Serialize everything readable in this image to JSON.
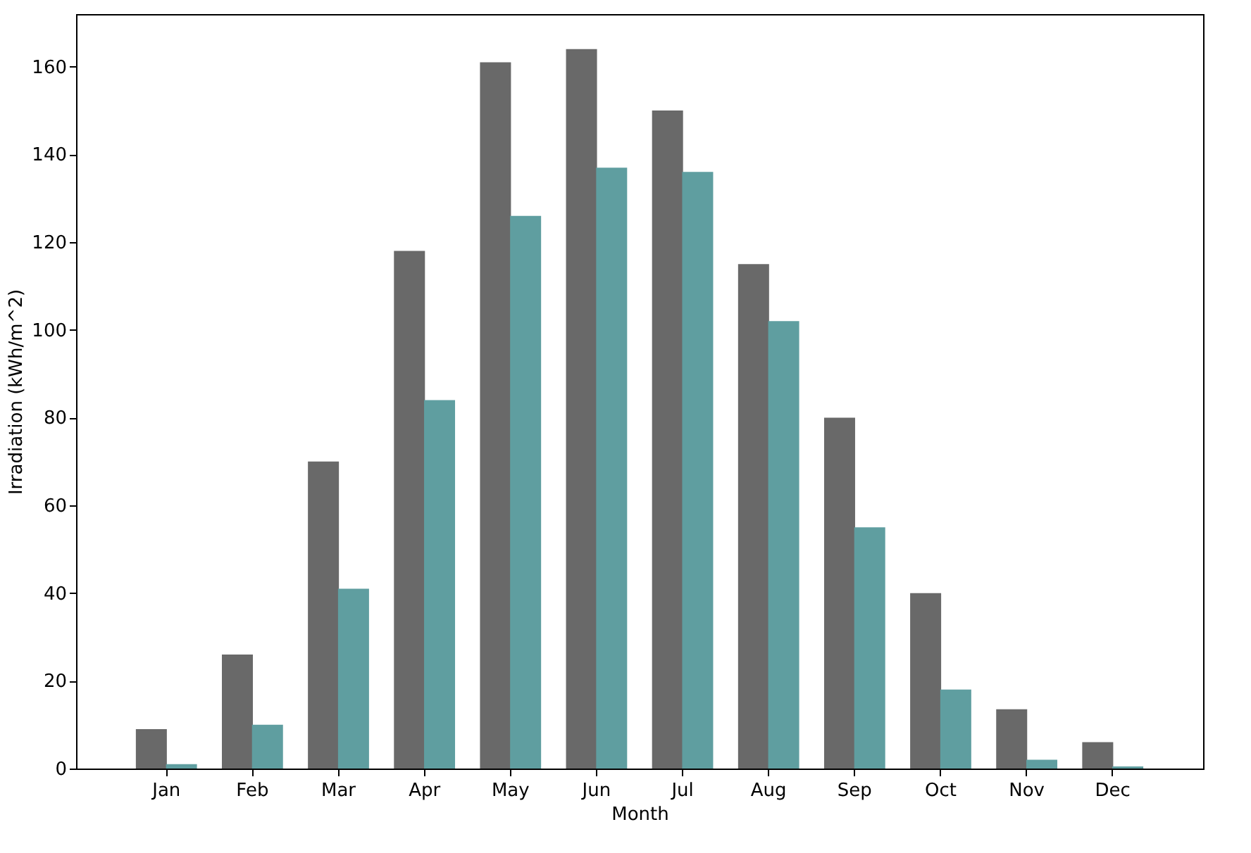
{
  "chart_data": {
    "type": "bar",
    "xlabel": "Month",
    "ylabel": "Irradiation (kWh/m^2)",
    "categories": [
      "Jan",
      "Feb",
      "Mar",
      "Apr",
      "May",
      "Jun",
      "Jul",
      "Aug",
      "Sep",
      "Oct",
      "Nov",
      "Dec"
    ],
    "series": [
      {
        "color": "#696969",
        "values": [
          9,
          26,
          70,
          118,
          161,
          164,
          150,
          115,
          80,
          40,
          13.5,
          6
        ]
      },
      {
        "color": "#5f9ea0",
        "values": [
          1,
          10,
          41,
          84,
          126,
          137,
          136,
          102,
          55,
          18,
          2,
          0.5
        ]
      }
    ],
    "ylim": [
      0,
      172
    ],
    "yticks": [
      0,
      20,
      40,
      60,
      80,
      100,
      120,
      140,
      160
    ],
    "grid": false
  }
}
